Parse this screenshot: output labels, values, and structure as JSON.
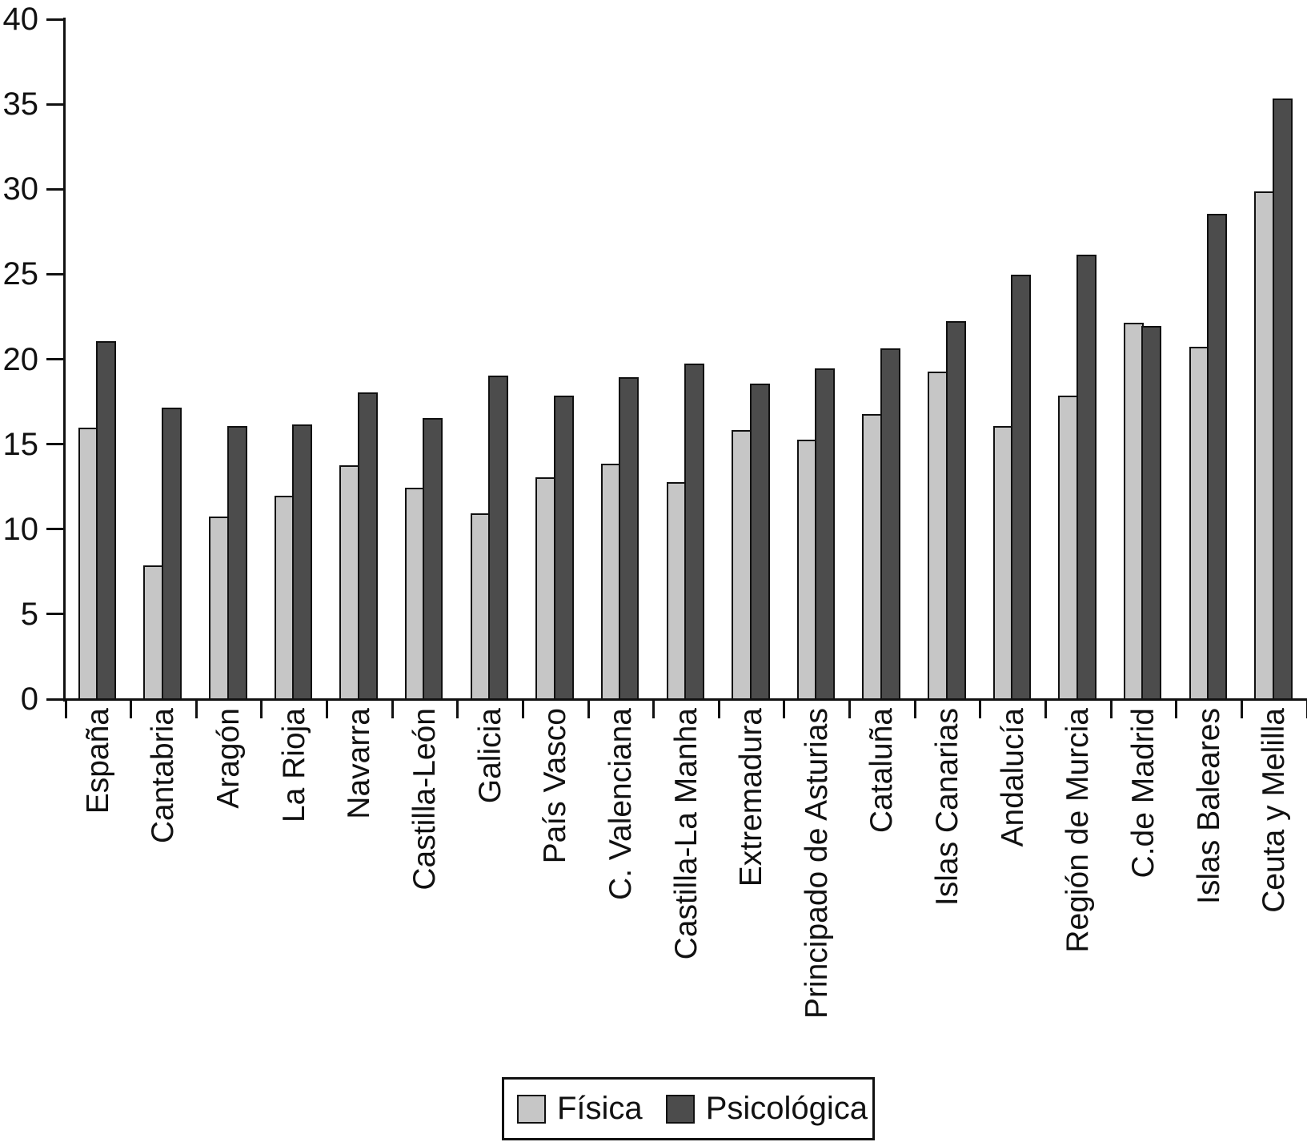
{
  "chart_data": {
    "type": "bar",
    "categories": [
      "España",
      "Cantabria",
      "Aragón",
      "La Rioja",
      "Navarra",
      "Castilla-León",
      "Galicia",
      "País Vasco",
      "C. Valenciana",
      "Castilla-La Manha",
      "Extremadura",
      "Principado de Asturias",
      "Cataluña",
      "Islas Canarias",
      "Andalucía",
      "Región de Murcia",
      "C.de Madrid",
      "Islas Baleares",
      "Ceuta y Melilla"
    ],
    "series": [
      {
        "name": "Física",
        "color": "#c6c6c6",
        "values": [
          16.0,
          7.9,
          10.8,
          12.0,
          13.8,
          12.5,
          11.0,
          13.1,
          13.9,
          12.8,
          15.9,
          15.3,
          16.8,
          19.3,
          16.1,
          17.9,
          22.2,
          20.8,
          29.9
        ]
      },
      {
        "name": "Psicológica",
        "color": "#4c4c4c",
        "values": [
          21.1,
          17.2,
          16.1,
          16.2,
          18.1,
          16.6,
          19.1,
          17.9,
          19.0,
          19.8,
          18.6,
          19.5,
          20.7,
          22.3,
          25.0,
          26.2,
          22.0,
          28.6,
          35.4
        ]
      }
    ],
    "title": "",
    "xlabel": "",
    "ylabel": "",
    "ylim": [
      0,
      40
    ],
    "ytick_step": 5,
    "ytick_labels": [
      "0",
      "5",
      "10",
      "15",
      "20",
      "25",
      "30",
      "35",
      "40"
    ],
    "grid": false,
    "legend_position": "bottom",
    "axis_color": "#111111",
    "bar_border_color": "#111111"
  },
  "legend": {
    "items": [
      {
        "label": "Física",
        "color": "#c6c6c6"
      },
      {
        "label": "Psicológica",
        "color": "#4c4c4c"
      }
    ]
  }
}
